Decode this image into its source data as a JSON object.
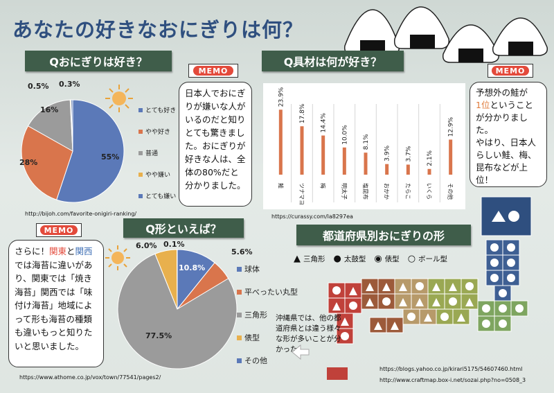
{
  "title": "あなたの好きなおにぎりは何？",
  "section1": {
    "banner": "Qおにぎりは好き？",
    "legend": [
      {
        "label": "とても好き",
        "color": "#5b79b8"
      },
      {
        "label": "やや好き",
        "color": "#d9754c"
      },
      {
        "label": "普通",
        "color": "#9b9b9b"
      },
      {
        "label": "やや嫌い",
        "color": "#e8b04d"
      },
      {
        "label": "とても嫌い",
        "color": "#5b79b8"
      }
    ],
    "url": "http://bijoh.com/favorite-onigiri-ranking/"
  },
  "memo1": {
    "badge": "MEMO",
    "text": "日本人でおにぎりが嫌いな人がいるのだと知りとても驚きました。おにぎりが好きな人は、全体の80%だと分かりました。"
  },
  "section2": {
    "banner": "Q具材は何が好き？",
    "url": "https://curassy.com/la8297ea"
  },
  "memo2": {
    "badge": "MEMO",
    "text_a": "予想外の鮭が",
    "text_b": "1位",
    "text_c": "ということが分かりました。",
    "text_d": "やはり、日本人らしい鮭、梅、昆布などが上位！"
  },
  "section3": {
    "banner": "Q形といえば？",
    "legend": [
      {
        "label": "球体",
        "color": "#5b79b8"
      },
      {
        "label": "平べったい丸型",
        "color": "#d9754c"
      },
      {
        "label": "三角形",
        "color": "#9b9b9b"
      },
      {
        "label": "俵型",
        "color": "#e8b04d"
      },
      {
        "label": "その他",
        "color": "#5b79b8"
      }
    ],
    "url": "https://www.athome.co.jp/vox/town/77541/pages2/"
  },
  "memo3": {
    "badge": "MEMO",
    "t1": "さらに！",
    "kanto": "関東",
    "t2": "と",
    "kansai": "関西",
    "t3": "では海苔に違いがあり、関東では「焼き海苔」関西では「味付け海苔」地域によって形も海苔の種類も違いもっと知りたいと思いました。"
  },
  "section4": {
    "banner": "都道府県別おにぎりの形",
    "shapes": [
      {
        "symbol": "▲",
        "label": "三角形"
      },
      {
        "symbol": "●",
        "label": "太鼓型"
      },
      {
        "symbol": "◉",
        "label": "俵型"
      },
      {
        "symbol": "○",
        "label": "ボール型"
      }
    ],
    "okinawa_note": "沖縄県では、他の都道府県とは違う様々な形が多いことが分かった！",
    "url1": "https://blogs.yahoo.co.jp/kirari5175/54607460.html",
    "url2": "http://www.craftmap.box-i.net/sozai.php?no=0508_3"
  },
  "chart_data": [
    {
      "type": "pie",
      "categories": [
        "とても好き",
        "やや好き",
        "普通",
        "やや嫌い",
        "とても嫌い"
      ],
      "values": [
        55,
        28,
        16,
        0.3,
        0.5
      ],
      "labels": [
        "55%",
        "28%",
        "16%",
        "0.3%",
        "0.5%"
      ],
      "colors": [
        "#5b79b8",
        "#d9754c",
        "#9b9b9b",
        "#e8b04d",
        "#5b79b8"
      ],
      "legend": "right"
    },
    {
      "type": "bar",
      "categories": [
        "鮭",
        "ツナマヨ",
        "梅",
        "明太子",
        "塩昆布",
        "おかか",
        "たらこ",
        "いくら",
        "その他"
      ],
      "values": [
        23.9,
        17.8,
        14.4,
        10.0,
        8.1,
        3.9,
        3.7,
        2.1,
        12.9
      ],
      "labels": [
        "23.9%",
        "17.8%",
        "14.4%",
        "10.0%",
        "8.1%",
        "3.9%",
        "3.7%",
        "2.1%",
        "12.9%"
      ],
      "ylim": [
        0,
        26
      ],
      "grid": "vertical separators",
      "color": "#d9754c"
    },
    {
      "type": "pie",
      "categories": [
        "球体",
        "平べったい丸型",
        "三角形",
        "俵型",
        "その他"
      ],
      "values": [
        10.8,
        5.6,
        77.5,
        6.0,
        0.1
      ],
      "labels": [
        "10.8%",
        "5.6%",
        "77.5%",
        "6.0%",
        "0.1%"
      ],
      "colors": [
        "#5b79b8",
        "#d9754c",
        "#9b9b9b",
        "#e8b04d",
        "#5b79b8"
      ],
      "legend": "right"
    }
  ]
}
